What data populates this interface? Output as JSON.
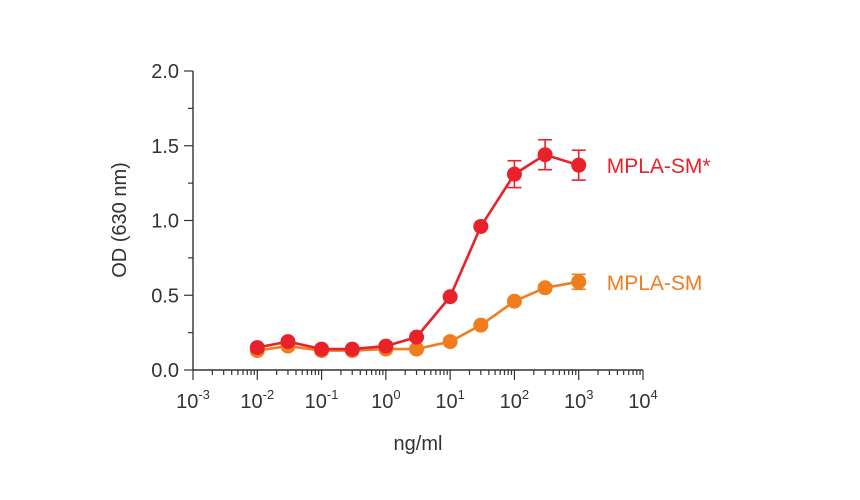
{
  "chart_data": {
    "type": "line",
    "xscale": "log",
    "xlabel": "ng/ml",
    "ylabel": "OD (630 nm)",
    "xlim": [
      0.001,
      10000
    ],
    "ylim": [
      0.0,
      2.0
    ],
    "x_ticks": [
      {
        "base": "10",
        "exp": "-3",
        "value": 0.001
      },
      {
        "base": "10",
        "exp": "-2",
        "value": 0.01
      },
      {
        "base": "10",
        "exp": "-1",
        "value": 0.1
      },
      {
        "base": "10",
        "exp": "0",
        "value": 1
      },
      {
        "base": "10",
        "exp": "1",
        "value": 10
      },
      {
        "base": "10",
        "exp": "2",
        "value": 100
      },
      {
        "base": "10",
        "exp": "3",
        "value": 1000
      },
      {
        "base": "10",
        "exp": "4",
        "value": 10000
      }
    ],
    "y_ticks": [
      "0.0",
      "0.5",
      "1.0",
      "1.5",
      "2.0"
    ],
    "grid": false,
    "series": [
      {
        "name": "MPLA-SM",
        "color": "#f07d1e",
        "x": [
          0.01,
          0.03,
          0.1,
          0.3,
          1,
          3,
          10,
          30,
          100,
          300,
          1000
        ],
        "y": [
          0.13,
          0.16,
          0.13,
          0.13,
          0.14,
          0.14,
          0.19,
          0.3,
          0.46,
          0.55,
          0.59
        ],
        "err": [
          0,
          0,
          0,
          0,
          0,
          0,
          0,
          0,
          0,
          0.02,
          0.05
        ]
      },
      {
        "name": "MPLA-SM*",
        "color": "#e8212a",
        "x": [
          0.01,
          0.03,
          0.1,
          0.3,
          1,
          3,
          10,
          30,
          100,
          300,
          1000
        ],
        "y": [
          0.15,
          0.19,
          0.14,
          0.14,
          0.16,
          0.22,
          0.49,
          0.96,
          1.31,
          1.44,
          1.37
        ],
        "err": [
          0,
          0,
          0,
          0,
          0,
          0,
          0,
          0,
          0.09,
          0.1,
          0.1
        ]
      }
    ]
  }
}
